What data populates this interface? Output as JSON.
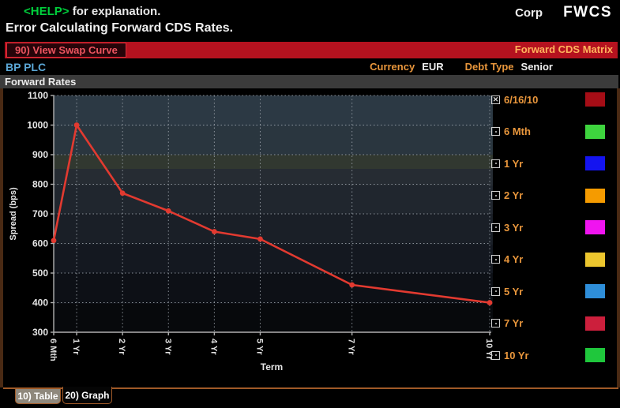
{
  "header": {
    "help_tag": "<HELP>",
    "help_rest": " for explanation.",
    "error_line": "Error Calculating Forward CDS Rates.",
    "corp": "Corp",
    "app_code": "FWCS"
  },
  "toolbar": {
    "swap_button_label": "90) View Swap Curve",
    "matrix_title": "Forward CDS Matrix"
  },
  "security": {
    "name": "BP PLC",
    "currency_label": "Currency",
    "currency_value": "EUR",
    "debt_type_label": "Debt Type",
    "debt_type_value": "Senior"
  },
  "panel": {
    "title": "Forward Rates"
  },
  "chart_data": {
    "type": "line",
    "title": "Forward Rates",
    "xlabel": "Term",
    "ylabel": "Spread (bps)",
    "ylim": [
      300,
      1100
    ],
    "y_ticks": [
      300,
      400,
      500,
      600,
      700,
      800,
      900,
      1000,
      1100
    ],
    "categories": [
      "6 Mth",
      "1 Yr",
      "2 Yr",
      "3 Yr",
      "4 Yr",
      "5 Yr",
      "7 Yr",
      "10 Yr"
    ],
    "x_years": [
      0.5,
      1,
      2,
      3,
      4,
      5,
      7,
      10
    ],
    "series": [
      {
        "name": "6/16/10",
        "color": "#e23a30",
        "values": [
          610,
          1000,
          770,
          710,
          640,
          615,
          460,
          400
        ]
      }
    ],
    "grid": "dotted",
    "legend_position": "right"
  },
  "legend": {
    "items": [
      {
        "label": "6/16/10",
        "checked": true,
        "swatch": "#a50d16"
      },
      {
        "label": "6 Mth",
        "checked": false,
        "swatch": "#3ed43e"
      },
      {
        "label": "1 Yr",
        "checked": false,
        "swatch": "#1414f0"
      },
      {
        "label": "2 Yr",
        "checked": false,
        "swatch": "#f59b00"
      },
      {
        "label": "3 Yr",
        "checked": false,
        "swatch": "#f014f0"
      },
      {
        "label": "4 Yr",
        "checked": false,
        "swatch": "#ecc62e"
      },
      {
        "label": "5 Yr",
        "checked": false,
        "swatch": "#2e8ed9"
      },
      {
        "label": "7 Yr",
        "checked": false,
        "swatch": "#cc1f3c"
      },
      {
        "label": "10 Yr",
        "checked": false,
        "swatch": "#1fc73c"
      }
    ]
  },
  "tabs": [
    {
      "label": "10) Table",
      "active": false
    },
    {
      "label": "20) Graph",
      "active": true
    }
  ],
  "colors": {
    "toolbar_red": "#b5121f",
    "amber": "#e8963c",
    "help_green": "#00d03c",
    "security_blue": "#5ba7d6",
    "line_red": "#e23a30",
    "tab_border": "#a05a28",
    "panel_title_bg": "#3b3b3b"
  }
}
